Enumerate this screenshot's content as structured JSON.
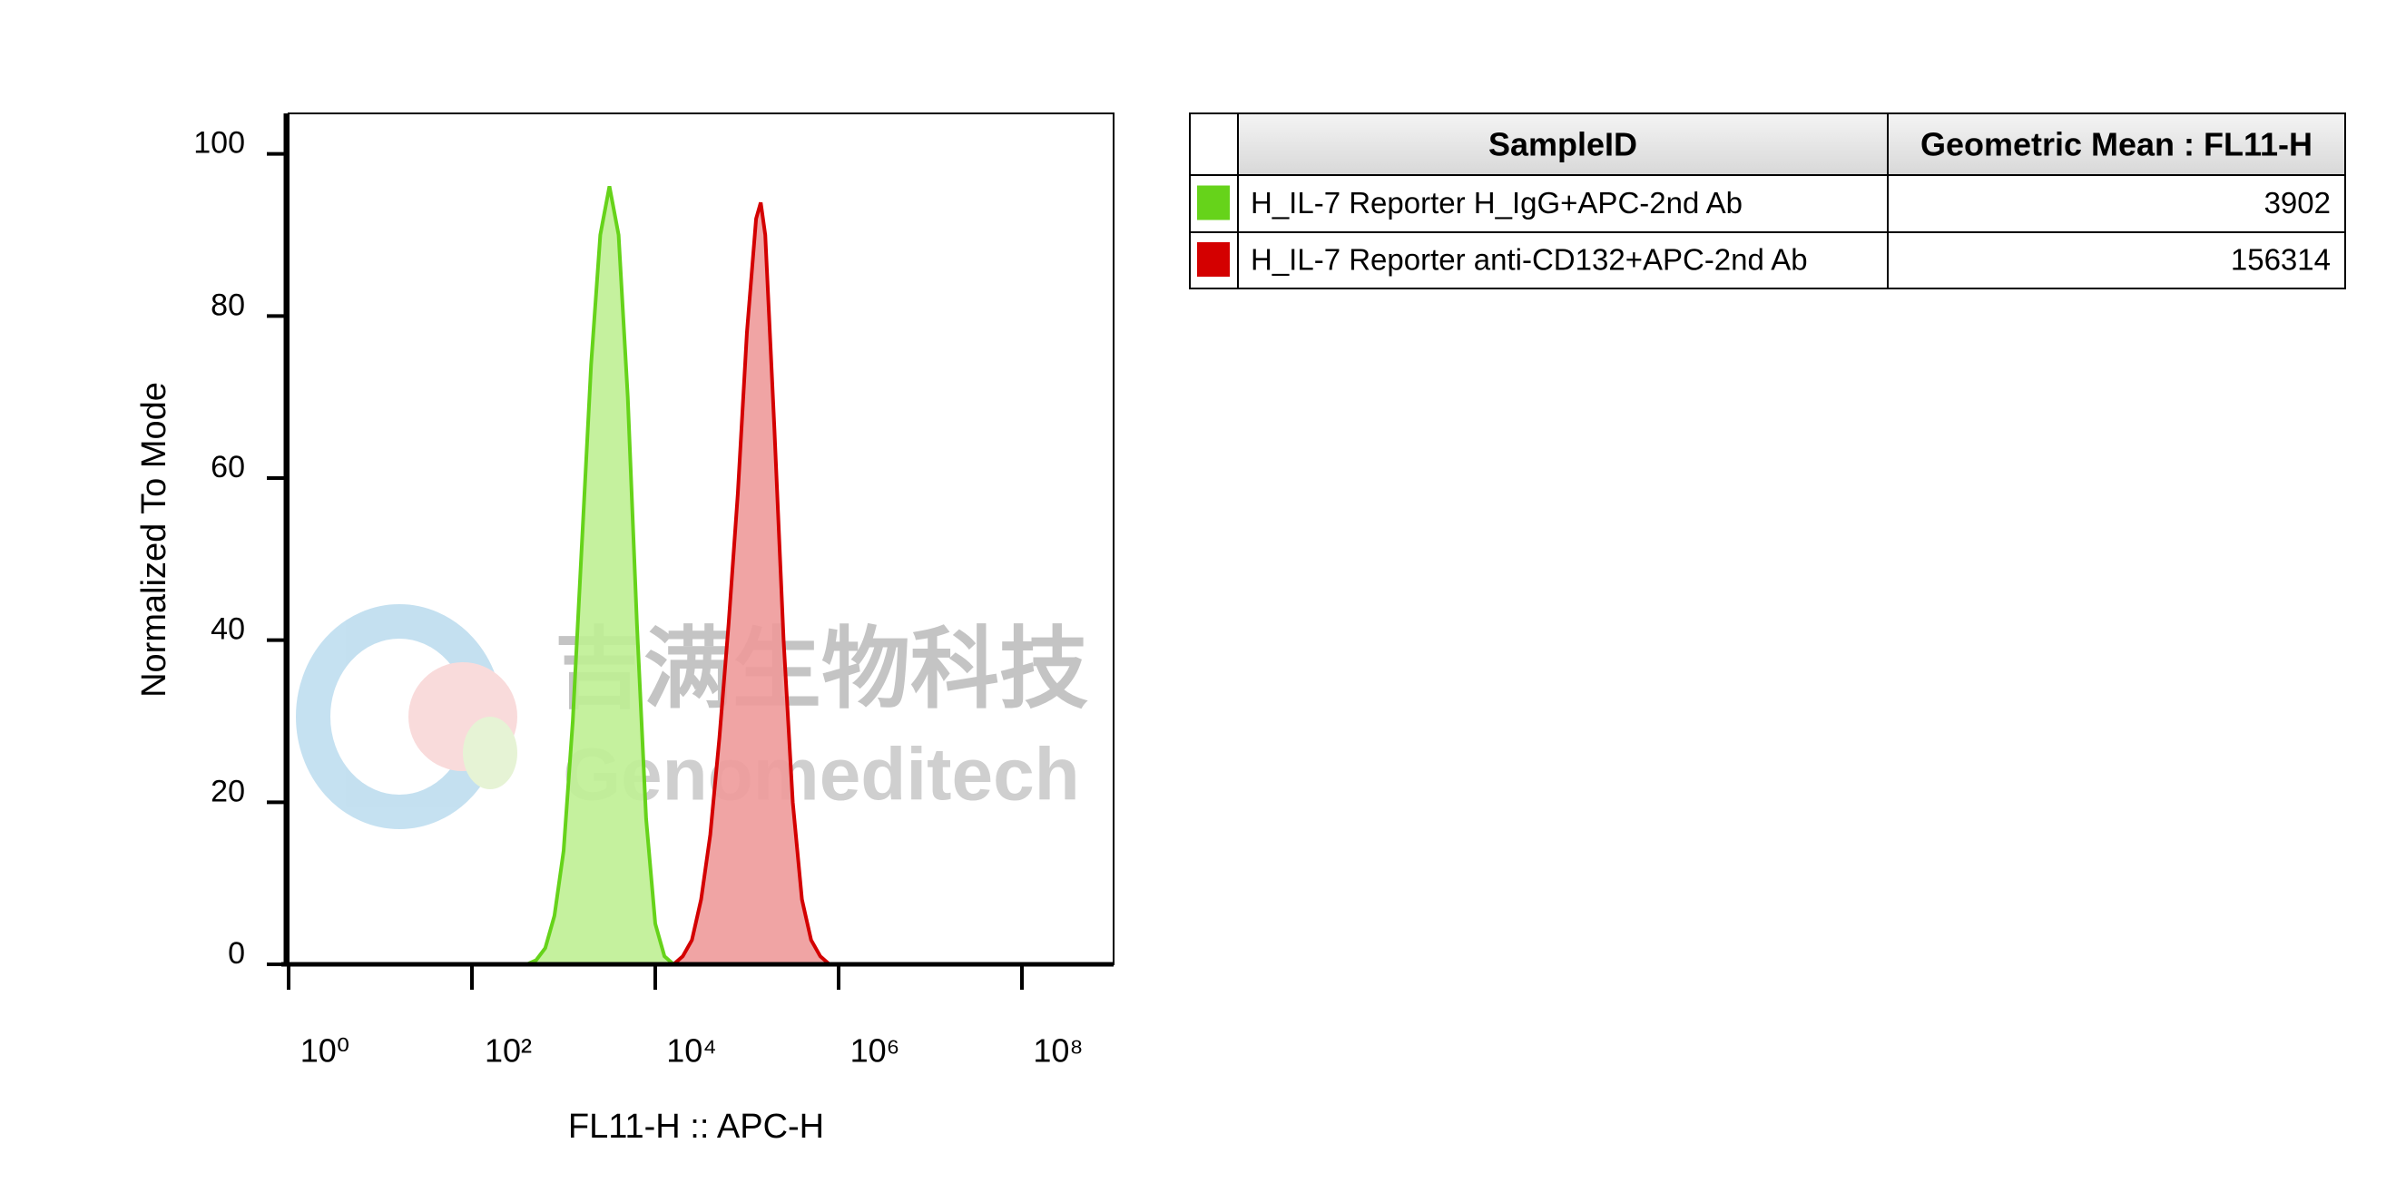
{
  "chart_data": {
    "type": "area",
    "xlabel": "FL11-H :: APC-H",
    "ylabel": "Normalized To Mode",
    "xscale": "log",
    "xlim": [
      1,
      1000000000
    ],
    "ylim": [
      0,
      105
    ],
    "xticks": [
      {
        "value": 1,
        "label": "10⁰"
      },
      {
        "value": 100,
        "label": "10²"
      },
      {
        "value": 10000,
        "label": "10⁴"
      },
      {
        "value": 1000000,
        "label": "10⁶"
      },
      {
        "value": 100000000,
        "label": "10⁸"
      }
    ],
    "yticks": [
      0,
      20,
      40,
      60,
      80,
      100
    ],
    "series": [
      {
        "name": "H_IL-7 Reporter H_IgG+APC-2nd Ab",
        "color": "#66d31a",
        "fill": "#bfef94",
        "x": [
          1,
          398,
          501,
          631,
          794,
          1000,
          1259,
          1585,
          1995,
          2512,
          3162,
          3981,
          5012,
          6310,
          7943,
          10000,
          12589,
          15849,
          1000000000
        ],
        "values": [
          0,
          0,
          0.5,
          2,
          6,
          14,
          30,
          52,
          74,
          90,
          96,
          90,
          70,
          42,
          18,
          5,
          1,
          0,
          0
        ]
      },
      {
        "name": "H_IL-7 Reporter anti-CD132+APC-2nd Ab",
        "color": "#d40000",
        "fill": "#ee9a9a",
        "x": [
          1,
          15849,
          19953,
          25119,
          31623,
          39811,
          50119,
          63096,
          79433,
          100000,
          125893,
          141254,
          158489,
          199526,
          251189,
          316228,
          398107,
          501187,
          630957,
          794328,
          1000000000
        ],
        "values": [
          0,
          0,
          1,
          3,
          8,
          16,
          28,
          42,
          58,
          78,
          92,
          94,
          90,
          66,
          40,
          20,
          8,
          3,
          1,
          0,
          0
        ]
      }
    ]
  },
  "table": {
    "columns": [
      "SampleID",
      "Geometric Mean : FL11-H"
    ],
    "rows": [
      [
        "H_IL-7 Reporter H_IgG+APC-2nd Ab",
        3902
      ],
      [
        "H_IL-7 Reporter anti-CD132+APC-2nd Ab",
        156314
      ]
    ],
    "colors": [
      "#66d31a",
      "#d40000"
    ]
  },
  "watermark": {
    "cn": "吉满生物科技",
    "en": "Genomeditech"
  }
}
